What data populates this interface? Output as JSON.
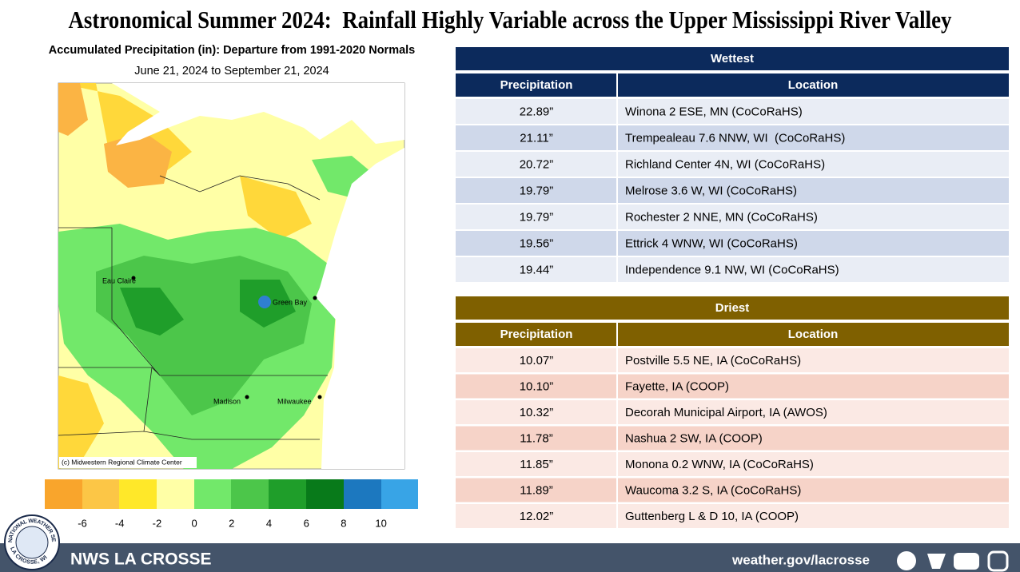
{
  "title": "Astronomical Summer 2024:  Rainfall Highly Variable across the Upper Mississippi River Valley",
  "map": {
    "title": "Accumulated Precipitation (in): Departure from 1991-2020 Normals",
    "subtitle": "June 21, 2024 to September 21, 2024",
    "cities": [
      "Eau Claire",
      "Green Bay",
      "Madison",
      "Milwaukee"
    ],
    "credit": "(c) Midwestern Regional Climate Center",
    "legend_labels": [
      -6,
      -4,
      -2,
      0,
      2,
      4,
      6,
      8,
      10
    ]
  },
  "wettest": {
    "title": "Wettest",
    "columns": [
      "Precipitation",
      "Location"
    ],
    "rows": [
      [
        "22.89”",
        "Winona 2 ESE, MN (CoCoRaHS)"
      ],
      [
        "21.11”",
        "Trempealeau 7.6 NNW, WI  (CoCoRaHS)"
      ],
      [
        "20.72”",
        "Richland Center 4N, WI (CoCoRaHS)"
      ],
      [
        "19.79”",
        "Melrose 3.6 W, WI (CoCoRaHS)"
      ],
      [
        "19.79”",
        "Rochester 2 NNE, MN (CoCoRaHS)"
      ],
      [
        "19.56”",
        "Ettrick 4 WNW, WI (CoCoRaHS)"
      ],
      [
        "19.44”",
        "Independence 9.1 NW, WI (CoCoRaHS)"
      ]
    ]
  },
  "driest": {
    "title": "Driest",
    "columns": [
      "Precipitation",
      "Location"
    ],
    "rows": [
      [
        "10.07”",
        "Postville 5.5 NE, IA (CoCoRaHS)"
      ],
      [
        "10.10”",
        "Fayette, IA (COOP)"
      ],
      [
        "10.32”",
        "Decorah Municipal Airport, IA (AWOS)"
      ],
      [
        "11.78”",
        "Nashua 2 SW, IA (COOP)"
      ],
      [
        "11.85”",
        "Monona 0.2 WNW, IA (CoCoRaHS)"
      ],
      [
        "11.89”",
        "Waucoma 3.2 S, IA (CoCoRaHS)"
      ],
      [
        "12.02”",
        "Guttenberg L & D 10, IA (COOP)"
      ]
    ]
  },
  "logo": {
    "top": "NATIONAL WEATHER SERVICE",
    "bottom": "LA CROSSE, WI"
  },
  "footer": {
    "office": "NWS LA CROSSE",
    "url": "weather.gov/lacrosse"
  }
}
